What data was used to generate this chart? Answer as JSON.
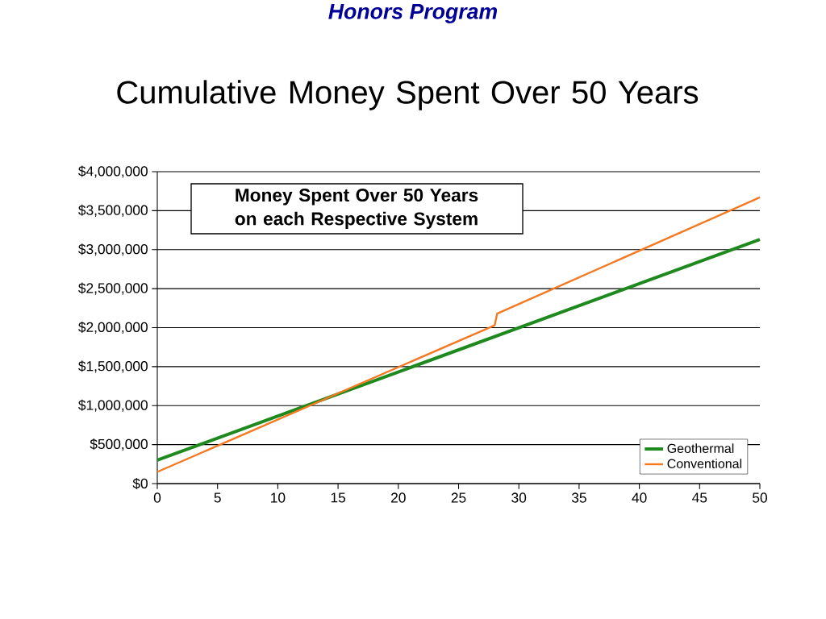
{
  "chart_data": {
    "type": "line",
    "title": "Cumulative Money Spent Over 50 Years",
    "x": [
      0,
      50
    ],
    "series": [
      {
        "name": "Geothermal",
        "color": "#1e8a1e",
        "values": [
          300000,
          3130000
        ]
      },
      {
        "name": "Conventional",
        "color": "#f47920",
        "x": [
          0,
          28,
          28.2,
          50
        ],
        "values": [
          150000,
          2030000,
          2180000,
          3670000
        ]
      }
    ],
    "xlim": [
      0,
      50
    ],
    "xticks": [
      0,
      5,
      10,
      15,
      20,
      25,
      30,
      35,
      40,
      45,
      50
    ],
    "ylim": [
      0,
      4000000
    ],
    "yticks": [
      {
        "value": 0,
        "label": "$0"
      },
      {
        "value": 500000,
        "label": "$500,000"
      },
      {
        "value": 1000000,
        "label": "$1,000,000"
      },
      {
        "value": 1500000,
        "label": "$1,500,000"
      },
      {
        "value": 2000000,
        "label": "$2,000,000"
      },
      {
        "value": 2500000,
        "label": "$2,500,000"
      },
      {
        "value": 3000000,
        "label": "$3,000,000"
      },
      {
        "value": 3500000,
        "label": "$3,500,000"
      },
      {
        "value": 4000000,
        "label": "$4,000,000"
      }
    ],
    "grid": "y",
    "legend": "bottom right",
    "marker": "none",
    "line_style": "solid",
    "annotations": [
      "Money Spent Over 50 Years on each Respective System",
      "Honors Program"
    ]
  }
}
